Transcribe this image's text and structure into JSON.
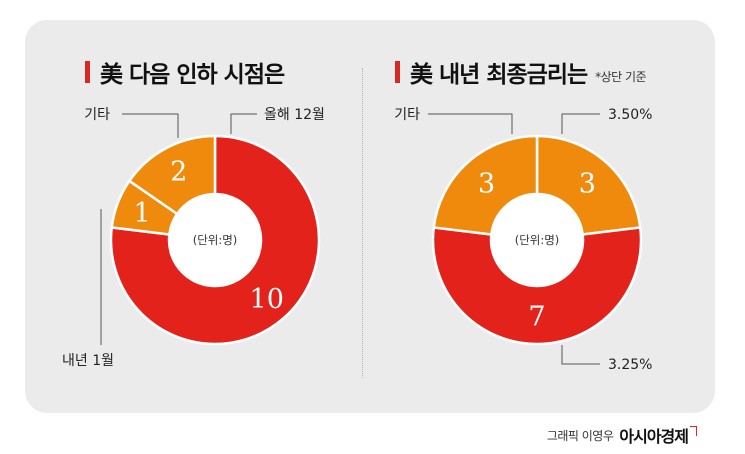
{
  "chart_data": [
    {
      "type": "pie",
      "title": "美 다음 인하 시점은",
      "center_label": "(단위:명)",
      "slices": [
        {
          "label": "올해 12월",
          "value": 10,
          "color": "#e3231b"
        },
        {
          "label": "내년 1월",
          "value": 1,
          "color": "#f08a0c"
        },
        {
          "label": "기타",
          "value": 2,
          "color": "#f08a0c"
        }
      ]
    },
    {
      "type": "pie",
      "title": "美 내년 최종금리는",
      "note": "*상단 기준",
      "center_label": "(단위:명)",
      "slices": [
        {
          "label": "3.50%",
          "value": 3,
          "color": "#f08a0c"
        },
        {
          "label": "3.25%",
          "value": 7,
          "color": "#e3231b"
        },
        {
          "label": "기타",
          "value": 3,
          "color": "#f08a0c"
        }
      ]
    }
  ],
  "credit": {
    "byline": "그래픽 이영우",
    "brand": "아시아경제"
  }
}
